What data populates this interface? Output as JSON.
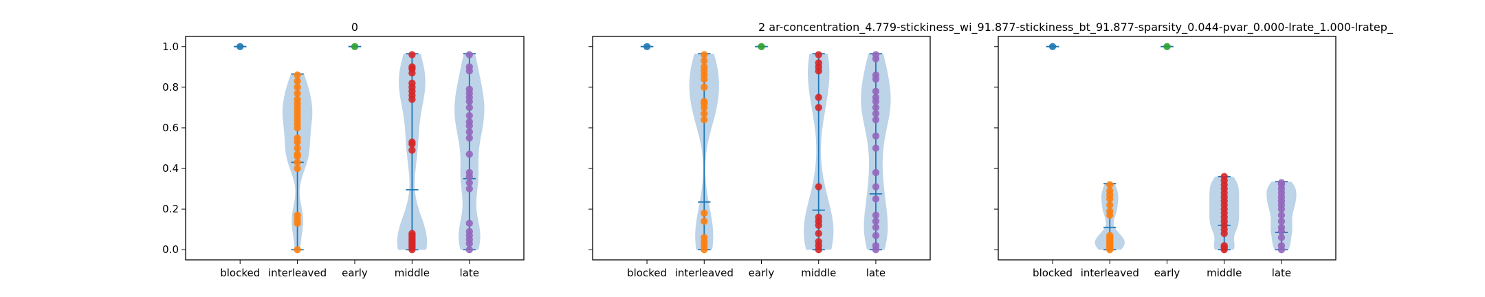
{
  "figure": {
    "subplot_titles": [
      "0",
      "",
      ""
    ],
    "suptitle": "2    ar-concentration_4.779-stickiness_wi_91.877-stickiness_bt_91.877-sparsity_0.044-pvar_0.000-lrate_1.000-lratep_"
  },
  "colors": {
    "violin_fill": "#8fb6d9",
    "stats_line": "#1f77b4",
    "series": [
      "#1f77b4",
      "#ff7f0e",
      "#2ca02c",
      "#d62728",
      "#9467bd"
    ]
  },
  "chart_data": [
    {
      "type": "violin",
      "title": "0",
      "categories": [
        "blocked",
        "interleaved",
        "early",
        "middle",
        "late"
      ],
      "ylim": [
        -0.05,
        1.05
      ],
      "yticks": [
        "0.0",
        "0.2",
        "0.4",
        "0.6",
        "0.8",
        "1.0"
      ],
      "grid": false,
      "series": [
        {
          "category": "blocked",
          "min": 1.0,
          "median": 1.0,
          "max": 1.0,
          "points": [
            1.0
          ]
        },
        {
          "category": "interleaved",
          "min": 0.0,
          "median": 0.43,
          "max": 0.865,
          "points": [
            0.0,
            0.13,
            0.15,
            0.17,
            0.4,
            0.43,
            0.46,
            0.47,
            0.5,
            0.53,
            0.55,
            0.6,
            0.62,
            0.64,
            0.66,
            0.68,
            0.7,
            0.72,
            0.74,
            0.77,
            0.8,
            0.83,
            0.86
          ]
        },
        {
          "category": "early",
          "min": 1.0,
          "median": 1.0,
          "max": 1.0,
          "points": [
            1.0
          ]
        },
        {
          "category": "middle",
          "min": 0.0,
          "median": 0.295,
          "max": 0.965,
          "points": [
            0.0,
            0.01,
            0.02,
            0.03,
            0.04,
            0.05,
            0.06,
            0.07,
            0.08,
            0.49,
            0.52,
            0.53,
            0.74,
            0.76,
            0.78,
            0.8,
            0.82,
            0.87,
            0.89,
            0.9,
            0.96
          ]
        },
        {
          "category": "late",
          "min": 0.0,
          "median": 0.35,
          "max": 0.965,
          "points": [
            0.0,
            0.03,
            0.05,
            0.07,
            0.09,
            0.13,
            0.3,
            0.33,
            0.36,
            0.38,
            0.47,
            0.55,
            0.58,
            0.61,
            0.63,
            0.66,
            0.7,
            0.73,
            0.75,
            0.77,
            0.79,
            0.88,
            0.9,
            0.96
          ]
        }
      ]
    },
    {
      "type": "violin",
      "title": "",
      "categories": [
        "blocked",
        "interleaved",
        "early",
        "middle",
        "late"
      ],
      "ylim": [
        -0.05,
        1.05
      ],
      "yticks": [
        "",
        "",
        "",
        "",
        "",
        ""
      ],
      "grid": false,
      "series": [
        {
          "category": "blocked",
          "min": 1.0,
          "median": 1.0,
          "max": 1.0,
          "points": [
            1.0
          ]
        },
        {
          "category": "interleaved",
          "min": 0.0,
          "median": 0.235,
          "max": 0.965,
          "points": [
            0.0,
            0.02,
            0.04,
            0.06,
            0.14,
            0.18,
            0.64,
            0.67,
            0.7,
            0.72,
            0.73,
            0.8,
            0.84,
            0.86,
            0.88,
            0.9,
            0.93,
            0.96
          ]
        },
        {
          "category": "early",
          "min": 1.0,
          "median": 1.0,
          "max": 1.0,
          "points": [
            1.0
          ]
        },
        {
          "category": "middle",
          "min": 0.0,
          "median": 0.195,
          "max": 0.965,
          "points": [
            0.0,
            0.02,
            0.04,
            0.08,
            0.12,
            0.14,
            0.16,
            0.31,
            0.7,
            0.75,
            0.88,
            0.9,
            0.92,
            0.96
          ]
        },
        {
          "category": "late",
          "min": 0.0,
          "median": 0.275,
          "max": 0.965,
          "points": [
            0.0,
            0.02,
            0.07,
            0.11,
            0.14,
            0.17,
            0.25,
            0.31,
            0.38,
            0.5,
            0.56,
            0.64,
            0.67,
            0.7,
            0.73,
            0.75,
            0.78,
            0.84,
            0.86,
            0.94,
            0.96
          ]
        }
      ]
    },
    {
      "type": "violin",
      "title": "",
      "categories": [
        "blocked",
        "interleaved",
        "early",
        "middle",
        "late"
      ],
      "ylim": [
        -0.05,
        1.05
      ],
      "yticks": [
        "",
        "",
        "",
        "",
        "",
        ""
      ],
      "grid": false,
      "series": [
        {
          "category": "blocked",
          "min": 1.0,
          "median": 1.0,
          "max": 1.0,
          "points": [
            1.0
          ]
        },
        {
          "category": "interleaved",
          "min": 0.0,
          "median": 0.11,
          "max": 0.325,
          "points": [
            0.0,
            0.01,
            0.02,
            0.03,
            0.04,
            0.05,
            0.06,
            0.07,
            0.17,
            0.19,
            0.22,
            0.25,
            0.27,
            0.29,
            0.32
          ]
        },
        {
          "category": "early",
          "min": 1.0,
          "median": 1.0,
          "max": 1.0,
          "points": [
            1.0
          ]
        },
        {
          "category": "middle",
          "min": 0.0,
          "median": 0.12,
          "max": 0.36,
          "points": [
            0.0,
            0.01,
            0.02,
            0.08,
            0.1,
            0.12,
            0.14,
            0.16,
            0.18,
            0.2,
            0.22,
            0.24,
            0.26,
            0.28,
            0.3,
            0.32,
            0.34,
            0.36
          ]
        },
        {
          "category": "late",
          "min": 0.0,
          "median": 0.085,
          "max": 0.335,
          "points": [
            0.0,
            0.02,
            0.06,
            0.09,
            0.11,
            0.14,
            0.17,
            0.2,
            0.22,
            0.24,
            0.26,
            0.28,
            0.3,
            0.32,
            0.33
          ]
        }
      ]
    }
  ]
}
